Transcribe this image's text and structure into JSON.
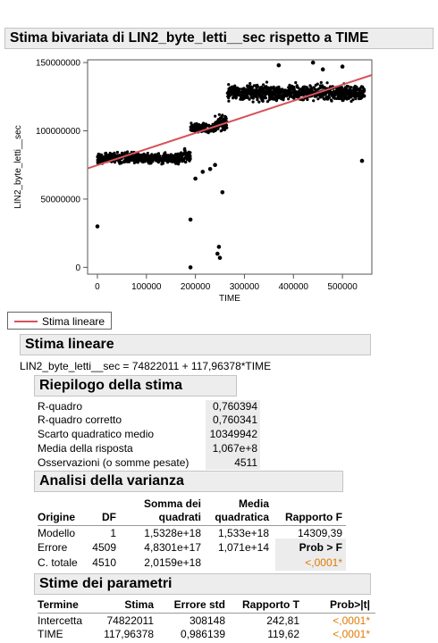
{
  "title": "Stima bivariata di LIN2_byte_letti__sec rispetto a TIME",
  "chart_data": {
    "type": "scatter",
    "xlabel": "TIME",
    "ylabel": "LIN2_byte_letti__sec",
    "xlim": [
      -20000,
      560000
    ],
    "ylim": [
      -5000000,
      152000000
    ],
    "xticks": [
      0,
      100000,
      200000,
      300000,
      400000,
      500000
    ],
    "xtick_labels": [
      "0",
      "100000",
      "200000",
      "300000",
      "400000",
      "500000"
    ],
    "yticks": [
      0,
      50000000,
      100000000,
      150000000
    ],
    "ytick_labels": [
      "0",
      "50000000",
      "100000000",
      "150000000"
    ],
    "clusters": [
      {
        "x_range": [
          0,
          175000
        ],
        "y_center": 80000000,
        "y_spread": 6000000
      },
      {
        "x_range": [
          175000,
          190000
        ],
        "y_center": 82000000,
        "y_spread": 9000000
      },
      {
        "x_range": [
          190000,
          240000
        ],
        "y_center": 102000000,
        "y_spread": 5000000
      },
      {
        "x_range": [
          240000,
          265000
        ],
        "y_center": 106000000,
        "y_spread": 9000000
      },
      {
        "x_range": [
          265000,
          545000
        ],
        "y_center": 128000000,
        "y_spread": 9000000
      }
    ],
    "outliers": [
      [
        0,
        30000000
      ],
      [
        190000,
        0
      ],
      [
        190000,
        35000000
      ],
      [
        245000,
        10000000
      ],
      [
        248000,
        15000000
      ],
      [
        250000,
        7000000
      ],
      [
        255000,
        55000000
      ],
      [
        215000,
        70000000
      ],
      [
        200000,
        65000000
      ],
      [
        240000,
        75000000
      ],
      [
        230000,
        72000000
      ],
      [
        440000,
        150000000
      ],
      [
        460000,
        145000000
      ],
      [
        540000,
        78000000
      ],
      [
        370000,
        148000000
      ],
      [
        500000,
        147000000
      ]
    ],
    "fit_line": {
      "intercept": 74822011,
      "slope": 117.96378,
      "color": "#d6525a"
    },
    "point_color": "#000000",
    "grid": false
  },
  "legend": {
    "label": "Stima lineare",
    "color": "#d6525a"
  },
  "linear_fit": {
    "header": "Stima lineare",
    "equation": "LIN2_byte_letti__sec = 74822011 + 117,96378*TIME"
  },
  "summary": {
    "header": "Riepilogo della stima",
    "rows": [
      {
        "label": "R-quadro",
        "value": "0,760394"
      },
      {
        "label": "R-quadro corretto",
        "value": "0,760341"
      },
      {
        "label": "Scarto quadratico medio",
        "value": "10349942"
      },
      {
        "label": "Media della risposta",
        "value": "1,067e+8"
      },
      {
        "label": "Osservazioni (o somme pesate)",
        "value": "4511"
      }
    ]
  },
  "anova": {
    "header": "Analisi della varianza",
    "col_origine": "Origine",
    "col_df": "DF",
    "col_ss_1": "Somma dei",
    "col_ss_2": "quadrati",
    "col_ms_1": "Media",
    "col_ms_2": "quadratica",
    "col_f": "Rapporto F",
    "rows": [
      {
        "origine": "Modello",
        "df": "1",
        "ss": "1,5328e+18",
        "ms": "1,533e+18",
        "f": "14309,39"
      },
      {
        "origine": "Errore",
        "df": "4509",
        "ss": "4,8301e+17",
        "ms": "1,071e+14",
        "f": "Prob > F"
      },
      {
        "origine": "C. totale",
        "df": "4510",
        "ss": "2,0159e+18",
        "ms": "",
        "f": "<,0001*"
      }
    ]
  },
  "params": {
    "header": "Stime dei parametri",
    "columns": [
      "Termine",
      "Stima",
      "Errore std",
      "Rapporto T",
      "Prob>|t|"
    ],
    "rows": [
      {
        "termine": "Intercetta",
        "stima": "74822011",
        "err": "308148",
        "t": "242,81",
        "p": "<,0001*"
      },
      {
        "termine": "TIME",
        "stima": "117,96378",
        "err": "0,986139",
        "t": "119,62",
        "p": "<,0001*"
      }
    ]
  },
  "colors": {
    "accent_orange": "#e07a00",
    "header_bg": "#ededed"
  }
}
